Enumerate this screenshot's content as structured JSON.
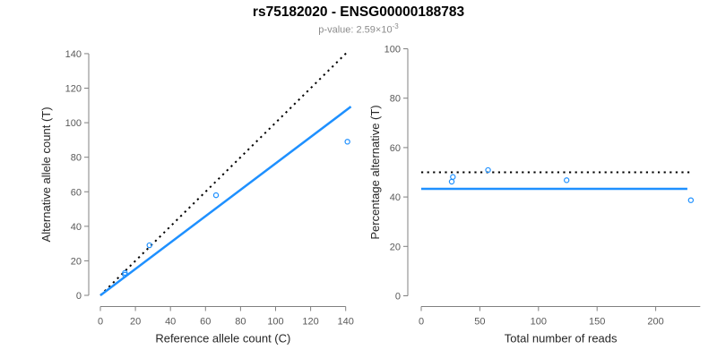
{
  "header": {
    "title": "rs75182020 - ENSG00000188783",
    "subtitle_prefix": "p-value: 2.59×10",
    "subtitle_exponent": "-3"
  },
  "colors": {
    "accent_blue": "#1E90FF",
    "identity_black": "#000000",
    "axis_gray": "#808080",
    "tick_text": "#595959",
    "label_text": "#262626",
    "subtitle_text": "#8c8c8c"
  },
  "chart_data": [
    {
      "id": "allele-count-scatter",
      "type": "scatter",
      "xlabel": "Reference allele count (C)",
      "ylabel": "Alternative allele count (T)",
      "xlim": [
        0,
        145
      ],
      "ylim": [
        0,
        145
      ],
      "xticks": [
        0,
        20,
        40,
        60,
        80,
        100,
        120,
        140
      ],
      "yticks": [
        0,
        20,
        40,
        60,
        80,
        100,
        120,
        140
      ],
      "xaxis_line": [
        0,
        140
      ],
      "yaxis_line": [
        0,
        140
      ],
      "point_color": "#1E90FF",
      "points": [
        [
          14,
          12
        ],
        [
          14,
          13
        ],
        [
          28,
          29
        ],
        [
          66,
          58
        ],
        [
          141,
          89
        ]
      ],
      "lines": [
        {
          "name": "identity-line",
          "style": "dotted",
          "color": "#000000",
          "x": [
            0,
            141
          ],
          "y": [
            0,
            141
          ]
        },
        {
          "name": "fit-line",
          "style": "solid",
          "color": "#1E90FF",
          "x": [
            0,
            143
          ],
          "y": [
            0,
            109.3
          ]
        }
      ]
    },
    {
      "id": "percentage-alternative-scatter",
      "type": "scatter",
      "xlabel": "Total number of reads",
      "ylabel": "Percentage alternative (T)",
      "xlim": [
        0,
        238
      ],
      "ylim": [
        0,
        100
      ],
      "xticks": [
        0,
        50,
        100,
        150,
        200
      ],
      "yticks": [
        0,
        20,
        40,
        60,
        80,
        100
      ],
      "xaxis_line": [
        0,
        238
      ],
      "yaxis_line": [
        0,
        100
      ],
      "point_color": "#1E90FF",
      "points": [
        [
          26,
          46.2
        ],
        [
          27,
          48.1
        ],
        [
          57,
          50.9
        ],
        [
          124,
          46.8
        ],
        [
          230,
          38.7
        ]
      ],
      "lines": [
        {
          "name": "null-line-50pct",
          "style": "dotted",
          "color": "#000000",
          "x": [
            0,
            229
          ],
          "y": [
            50,
            50
          ]
        },
        {
          "name": "fit-line",
          "style": "solid",
          "color": "#1E90FF",
          "x": [
            0,
            227
          ],
          "y": [
            43.3,
            43.3
          ]
        }
      ]
    }
  ]
}
